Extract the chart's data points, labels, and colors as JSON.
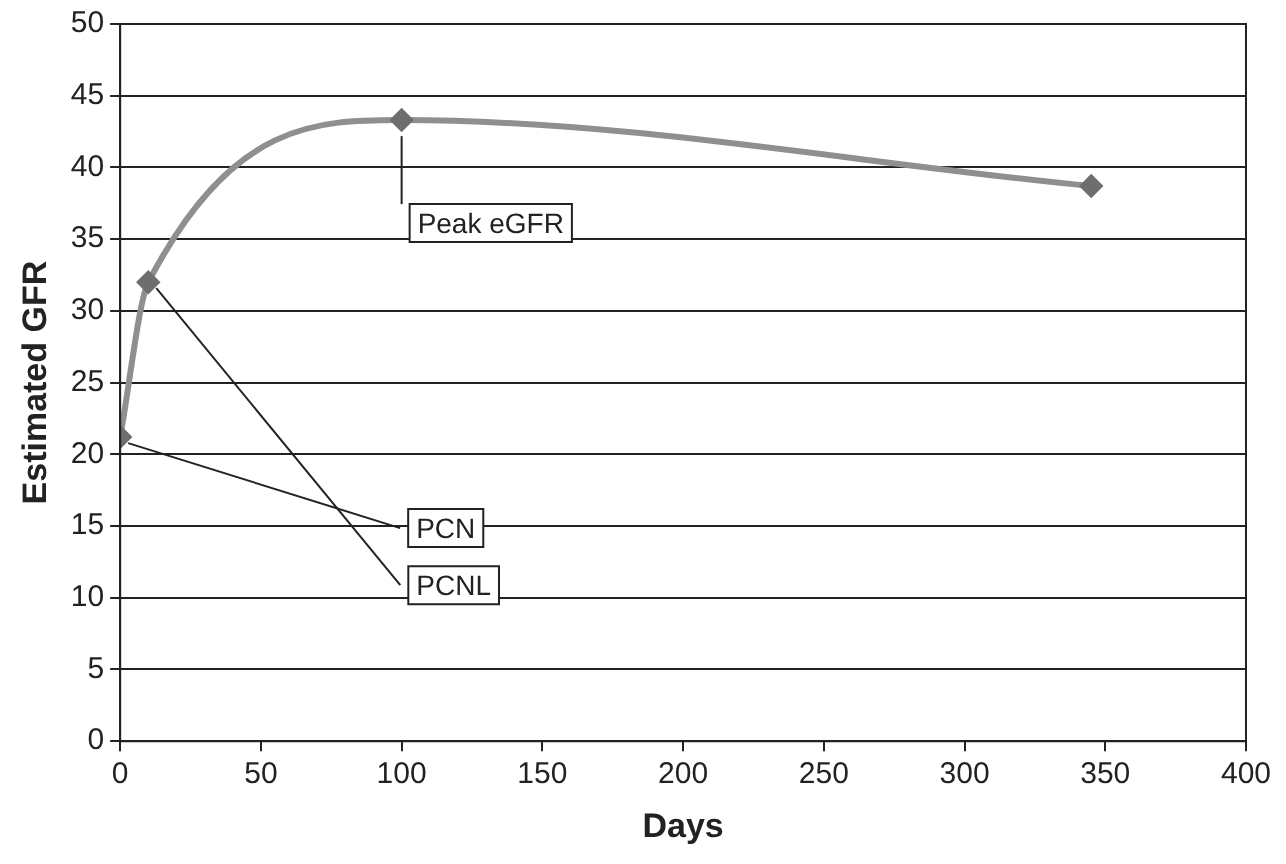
{
  "chart_data": {
    "type": "line",
    "xlabel": "Days",
    "ylabel": "Estimated GFR",
    "x": [
      0,
      10,
      100,
      345
    ],
    "series": [
      {
        "color": "#8f8f8f",
        "values": [
          21.2,
          32,
          43.3,
          38.7
        ]
      }
    ],
    "xlim": [
      0,
      400
    ],
    "xticks": [
      0,
      50,
      100,
      150,
      200,
      250,
      300,
      350,
      400
    ],
    "ylim": [
      0,
      50
    ],
    "yticks": [
      0,
      5,
      10,
      15,
      20,
      25,
      30,
      35,
      40,
      45,
      50
    ],
    "grid": "y",
    "marker": "diamond",
    "line_style": "solid",
    "annotations": [
      {
        "text": "Peak eGFR",
        "x": 100,
        "y": 43.3
      },
      {
        "text": "PCNL",
        "x": 10,
        "y": 32
      },
      {
        "text": "PCN",
        "x": 0,
        "y": 21.2
      }
    ]
  }
}
